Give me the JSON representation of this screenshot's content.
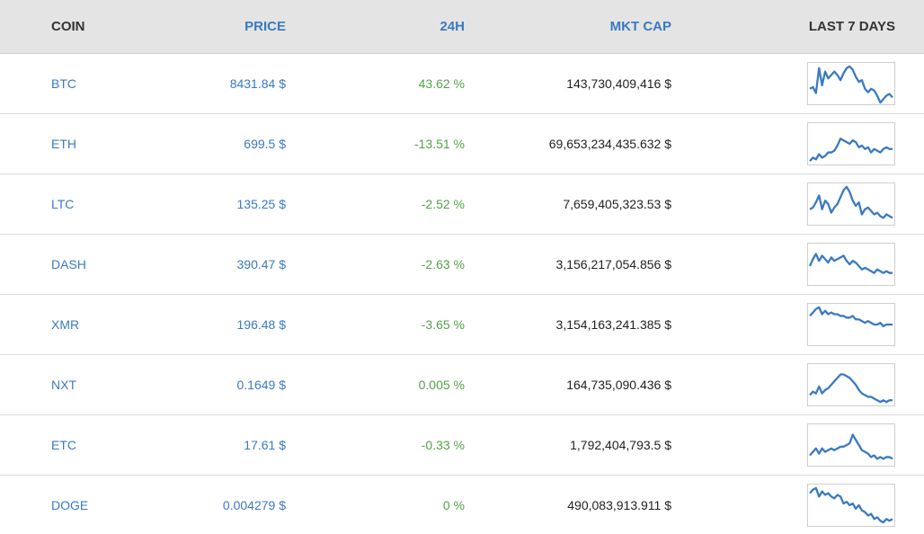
{
  "header": {
    "coin": "COIN",
    "price": "PRICE",
    "change": "24H",
    "cap": "MKT CAP",
    "last7": "LAST 7 DAYS"
  },
  "colors": {
    "accent": "#3a7ac0",
    "positive": "#52a346",
    "header_bg": "#e4e4e4"
  },
  "rows": [
    {
      "coin": "BTC",
      "price": "8431.84 $",
      "change": "43.62 %",
      "cap": "143,730,409,416 $",
      "spark": [
        30,
        28,
        35,
        6,
        26,
        10,
        18,
        14,
        10,
        14,
        20,
        12,
        6,
        4,
        8,
        16,
        22,
        20,
        30,
        34,
        30,
        32,
        38,
        46,
        42,
        38,
        36,
        40
      ]
    },
    {
      "coin": "ETH",
      "price": "699.5 $",
      "change": "-13.51 %",
      "cap": "69,653,234,435.632 $",
      "spark": [
        44,
        40,
        42,
        36,
        40,
        38,
        34,
        34,
        32,
        26,
        18,
        20,
        22,
        24,
        20,
        22,
        28,
        26,
        30,
        28,
        34,
        30,
        32,
        34,
        30,
        28,
        30,
        30
      ]
    },
    {
      "coin": "LTC",
      "price": "135.25 $",
      "change": "-2.52 %",
      "cap": "7,659,405,323.53 $",
      "spark": [
        30,
        28,
        22,
        14,
        30,
        20,
        24,
        34,
        28,
        24,
        16,
        8,
        4,
        10,
        20,
        26,
        22,
        36,
        30,
        28,
        32,
        36,
        34,
        38,
        40,
        36,
        38,
        40
      ]
    },
    {
      "coin": "DASH",
      "price": "390.47 $",
      "change": "-2.63 %",
      "cap": "3,156,217,054.856 $",
      "spark": [
        26,
        18,
        12,
        20,
        14,
        18,
        22,
        16,
        20,
        18,
        16,
        14,
        20,
        24,
        20,
        22,
        26,
        30,
        28,
        30,
        32,
        34,
        30,
        32,
        34,
        32,
        34,
        34
      ]
    },
    {
      "coin": "XMR",
      "price": "196.48 $",
      "change": "-3.65 %",
      "cap": "3,154,163,241.385 $",
      "spark": [
        14,
        10,
        6,
        4,
        12,
        8,
        12,
        10,
        12,
        12,
        14,
        14,
        16,
        16,
        14,
        18,
        18,
        20,
        22,
        20,
        22,
        24,
        24,
        22,
        26,
        24,
        24,
        24
      ]
    },
    {
      "coin": "NXT",
      "price": "0.1649 $",
      "change": "0.005 %",
      "cap": "164,735,090.436 $",
      "spark": [
        36,
        32,
        34,
        26,
        34,
        30,
        28,
        24,
        20,
        16,
        12,
        12,
        14,
        16,
        20,
        24,
        30,
        34,
        36,
        38,
        38,
        40,
        42,
        44,
        42,
        44,
        42,
        42
      ]
    },
    {
      "coin": "ETC",
      "price": "17.61 $",
      "change": "-0.33 %",
      "cap": "1,792,404,793.5 $",
      "spark": [
        36,
        32,
        28,
        34,
        28,
        32,
        30,
        28,
        30,
        28,
        26,
        26,
        24,
        22,
        12,
        18,
        24,
        30,
        32,
        34,
        38,
        36,
        40,
        38,
        40,
        38,
        38,
        40
      ]
    },
    {
      "coin": "DOGE",
      "price": "0.004279 $",
      "change": "0 %",
      "cap": "490,083,913.911 $",
      "spark": [
        10,
        6,
        4,
        14,
        8,
        12,
        10,
        14,
        16,
        12,
        14,
        22,
        20,
        24,
        22,
        28,
        24,
        30,
        32,
        36,
        34,
        40,
        38,
        42,
        44,
        40,
        42,
        40
      ]
    }
  ]
}
